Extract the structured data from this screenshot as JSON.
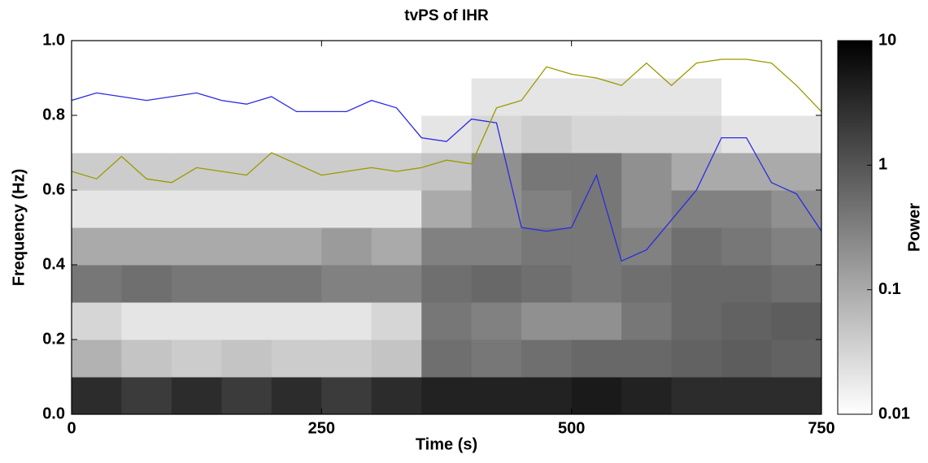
{
  "chart_data": {
    "type": "heatmap",
    "title": "tvPS of IHR",
    "x_label": "Time (s)",
    "y_label": "Frequency (Hz)",
    "xlim": [
      0,
      750
    ],
    "xticks": [
      0,
      250,
      500,
      750
    ],
    "ylim": [
      0,
      1
    ],
    "yticks": [
      {
        "value": 0,
        "label": "0.0"
      },
      0.2,
      0.4,
      0.6,
      0.8,
      {
        "value": 1,
        "label": "1.0"
      }
    ],
    "heatmap": {
      "xbins": [
        0,
        50,
        100,
        150,
        200,
        250,
        300,
        350,
        400,
        450,
        500,
        550,
        600,
        650,
        700,
        750
      ],
      "ybins": [
        0,
        0.1,
        0.2,
        0.3,
        0.4,
        0.5,
        0.6,
        0.7,
        0.8,
        0.9,
        1.0
      ],
      "values": [
        [
          3,
          2,
          3,
          2,
          3,
          2,
          3,
          4,
          4,
          4,
          5,
          4,
          3,
          3,
          3
        ],
        [
          0.08,
          0.05,
          0.04,
          0.05,
          0.04,
          0.04,
          0.05,
          0.5,
          0.4,
          0.5,
          0.6,
          0.6,
          0.7,
          0.8,
          0.7
        ],
        [
          0.03,
          0.02,
          0.02,
          0.02,
          0.02,
          0.02,
          0.03,
          0.4,
          0.3,
          0.2,
          0.2,
          0.4,
          0.6,
          0.7,
          0.8
        ],
        [
          0.4,
          0.5,
          0.4,
          0.4,
          0.4,
          0.3,
          0.3,
          0.5,
          0.6,
          0.5,
          0.4,
          0.5,
          0.6,
          0.6,
          0.5
        ],
        [
          0.1,
          0.1,
          0.1,
          0.1,
          0.1,
          0.15,
          0.1,
          0.3,
          0.3,
          0.4,
          0.4,
          0.3,
          0.5,
          0.4,
          0.3
        ],
        [
          0.02,
          0.02,
          0.02,
          0.02,
          0.02,
          0.02,
          0.02,
          0.1,
          0.2,
          0.3,
          0.4,
          0.2,
          0.3,
          0.3,
          0.2
        ],
        [
          0.04,
          0.04,
          0.04,
          0.04,
          0.04,
          0.04,
          0.04,
          0.05,
          0.2,
          0.4,
          0.4,
          0.2,
          0.1,
          0.1,
          0.1
        ],
        [
          0.01,
          0.01,
          0.01,
          0.01,
          0.01,
          0.01,
          0.01,
          0.02,
          0.03,
          0.04,
          0.03,
          0.03,
          0.03,
          0.02,
          0.02
        ],
        [
          0.01,
          0.01,
          0.01,
          0.01,
          0.01,
          0.01,
          0.01,
          0.01,
          0.02,
          0.02,
          0.02,
          0.02,
          0.02,
          0.01,
          0.01
        ],
        [
          0.01,
          0.01,
          0.01,
          0.01,
          0.01,
          0.01,
          0.01,
          0.01,
          0.01,
          0.01,
          0.01,
          0.01,
          0.01,
          0.01,
          0.01
        ]
      ]
    },
    "colorbar": {
      "label": "Power",
      "lim": [
        0.01,
        10
      ],
      "ticks": [
        10,
        1,
        0.1,
        0.01
      ],
      "log": true
    },
    "x": [
      0,
      25,
      50,
      75,
      100,
      125,
      150,
      175,
      200,
      225,
      250,
      275,
      300,
      325,
      350,
      375,
      400,
      425,
      450,
      475,
      500,
      525,
      550,
      575,
      600,
      625,
      650,
      675,
      700,
      725,
      750
    ],
    "series": [
      {
        "color": "#2b2be0",
        "values": [
          0.84,
          0.86,
          0.85,
          0.84,
          0.85,
          0.86,
          0.84,
          0.83,
          0.85,
          0.81,
          0.81,
          0.81,
          0.84,
          0.82,
          0.74,
          0.73,
          0.79,
          0.78,
          0.5,
          0.49,
          0.5,
          0.64,
          0.41,
          0.44,
          0.52,
          0.6,
          0.74,
          0.74,
          0.62,
          0.59,
          0.49
        ]
      },
      {
        "color": "#9a9a00",
        "values": [
          0.65,
          0.63,
          0.69,
          0.63,
          0.62,
          0.66,
          0.65,
          0.64,
          0.7,
          0.67,
          0.64,
          0.65,
          0.66,
          0.65,
          0.66,
          0.68,
          0.67,
          0.82,
          0.84,
          0.93,
          0.91,
          0.9,
          0.88,
          0.94,
          0.88,
          0.94,
          0.95,
          0.95,
          0.94,
          0.88,
          0.81
        ]
      }
    ]
  }
}
